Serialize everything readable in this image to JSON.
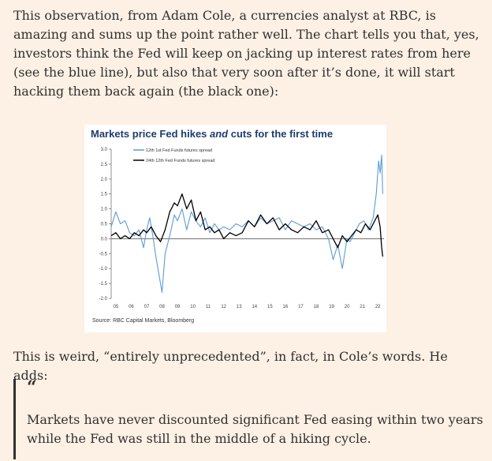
{
  "article": {
    "para1": "This observation, from Adam Cole, a currencies analyst at RBC, is amazing and sums up the point rather well. The chart tells you that, yes, investors think the Fed will keep on jacking up interest rates from here (see the blue line), but also that very soon after it’s done, it will start hacking them back again (the black one):",
    "para2": "This is weird, “entirely unprecedented”, in fact, in Cole’s words. He adds:",
    "quote_mark": "“",
    "quote": "Markets have never discounted significant Fed easing within two years while the Fed was still in the middle of a hiking cycle."
  },
  "chart_data": {
    "type": "line",
    "title_pre": "Markets price Fed hikes ",
    "title_em": "and",
    "title_post": " cuts for the first time",
    "source": "Source: RBC Capital Markets, Bloomberg",
    "xlabel": "",
    "ylabel": "",
    "ylim": [
      -2.0,
      3.0
    ],
    "xlim": [
      2004.7,
      2022.4
    ],
    "yticks": [
      "3.0",
      "2.5",
      "2.0",
      "1.5",
      "1.0",
      "0.5",
      "0.0",
      "-0.5",
      "-1.0",
      "-1.5",
      "-2.0"
    ],
    "ytick_values": [
      3.0,
      2.5,
      2.0,
      1.5,
      1.0,
      0.5,
      0.0,
      -0.5,
      -1.0,
      -1.5,
      -2.0
    ],
    "xticks": [
      "05",
      "06",
      "07",
      "08",
      "09",
      "10",
      "11",
      "12",
      "13",
      "14",
      "15",
      "16",
      "17",
      "18",
      "19",
      "20",
      "21",
      "22"
    ],
    "xtick_values": [
      2005,
      2006,
      2007,
      2008,
      2009,
      2010,
      2011,
      2012,
      2013,
      2014,
      2015,
      2016,
      2017,
      2018,
      2019,
      2020,
      2021,
      2022
    ],
    "legend_placement": "top-left",
    "grid": false,
    "zero_line": true,
    "series": [
      {
        "name": "12th 1st Fed Funds futures spread",
        "color": "#5b9bd5",
        "x": [
          2004.7,
          2005.0,
          2005.3,
          2005.6,
          2005.9,
          2006.2,
          2006.5,
          2006.8,
          2007.0,
          2007.2,
          2007.4,
          2007.6,
          2007.8,
          2008.0,
          2008.2,
          2008.5,
          2008.8,
          2009.0,
          2009.3,
          2009.6,
          2009.9,
          2010.2,
          2010.5,
          2010.8,
          2011.1,
          2011.4,
          2011.7,
          2012.0,
          2012.4,
          2012.8,
          2013.2,
          2013.6,
          2014.0,
          2014.4,
          2014.8,
          2015.2,
          2015.6,
          2016.0,
          2016.4,
          2016.8,
          2017.2,
          2017.6,
          2018.0,
          2018.4,
          2018.8,
          2019.1,
          2019.4,
          2019.7,
          2020.0,
          2020.2,
          2020.5,
          2020.8,
          2021.1,
          2021.4,
          2021.7,
          2021.9,
          2022.05,
          2022.15,
          2022.25,
          2022.32
        ],
        "values": [
          0.4,
          0.9,
          0.5,
          0.6,
          0.2,
          0.1,
          0.3,
          -0.3,
          0.3,
          0.7,
          0.1,
          -0.6,
          -1.2,
          -1.8,
          -0.5,
          0.1,
          0.8,
          0.6,
          1.0,
          0.3,
          0.9,
          0.6,
          0.4,
          0.7,
          0.2,
          0.5,
          0.3,
          0.4,
          0.3,
          0.5,
          0.4,
          0.6,
          0.4,
          0.7,
          0.5,
          0.6,
          0.7,
          0.3,
          0.6,
          0.5,
          0.4,
          0.5,
          0.3,
          0.4,
          0.0,
          -0.7,
          -0.2,
          -1.0,
          0.0,
          -0.1,
          0.2,
          0.5,
          0.6,
          0.3,
          0.7,
          1.5,
          2.6,
          2.2,
          2.8,
          1.5
        ]
      },
      {
        "name": "24th 12th Fed Funds futures spread",
        "color": "#000000",
        "x": [
          2004.7,
          2005.0,
          2005.3,
          2005.6,
          2005.9,
          2006.2,
          2006.5,
          2006.8,
          2007.0,
          2007.3,
          2007.6,
          2007.9,
          2008.2,
          2008.5,
          2008.8,
          2009.0,
          2009.3,
          2009.6,
          2009.9,
          2010.2,
          2010.5,
          2010.8,
          2011.1,
          2011.4,
          2011.7,
          2012.0,
          2012.4,
          2012.8,
          2013.2,
          2013.6,
          2014.0,
          2014.4,
          2014.8,
          2015.2,
          2015.6,
          2016.0,
          2016.4,
          2016.8,
          2017.2,
          2017.6,
          2018.0,
          2018.4,
          2018.8,
          2019.1,
          2019.4,
          2019.7,
          2020.0,
          2020.3,
          2020.6,
          2020.9,
          2021.2,
          2021.5,
          2021.8,
          2022.0,
          2022.15,
          2022.25,
          2022.32
        ],
        "values": [
          0.1,
          0.2,
          0.0,
          0.1,
          0.0,
          0.2,
          0.1,
          0.3,
          0.2,
          0.4,
          0.1,
          -0.1,
          0.3,
          0.9,
          1.2,
          1.1,
          1.5,
          1.0,
          1.3,
          0.6,
          0.9,
          0.3,
          0.4,
          0.2,
          0.3,
          0.0,
          0.2,
          0.1,
          0.2,
          0.6,
          0.4,
          0.8,
          0.5,
          0.7,
          0.3,
          0.5,
          0.3,
          0.2,
          0.4,
          0.3,
          0.6,
          0.2,
          0.3,
          0.0,
          -0.3,
          0.1,
          -0.1,
          0.1,
          0.3,
          0.2,
          0.5,
          0.3,
          0.6,
          0.8,
          0.4,
          -0.3,
          -0.6
        ]
      }
    ]
  }
}
